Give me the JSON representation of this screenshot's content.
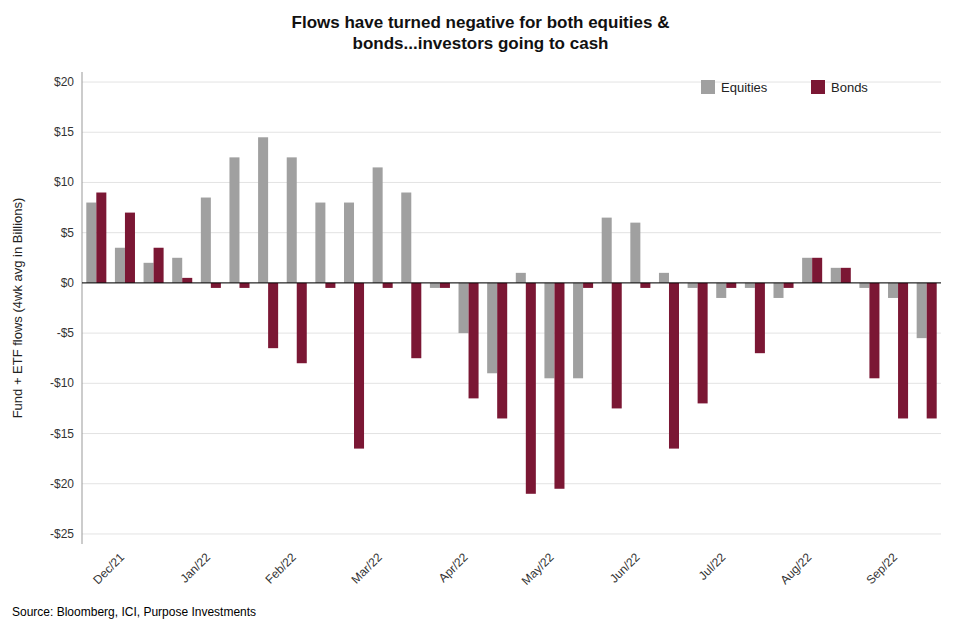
{
  "chart_data": {
    "type": "bar",
    "title": "Flows have turned negative for both equities &\nbonds...investors going to cash",
    "y_label": "Fund + ETF flows (4wk avg in Billions)",
    "annotations": [
      "Source: Bloomberg, ICI, Purpose Investments"
    ],
    "categories": [
      null,
      "Dec/21",
      null,
      null,
      "Jan/22",
      null,
      null,
      "Feb/22",
      null,
      null,
      "Mar/22",
      null,
      null,
      "Apr/22",
      null,
      null,
      "May/22",
      null,
      null,
      "Jun/22",
      null,
      null,
      "Jul/22",
      null,
      null,
      "Aug/22",
      null,
      null,
      "Sep/22",
      null
    ],
    "series": [
      {
        "name": "Equities",
        "color": "#a0a0a0",
        "values": [
          8.0,
          3.5,
          2.0,
          2.5,
          8.5,
          12.5,
          14.5,
          12.5,
          8.0,
          8.0,
          11.5,
          9.0,
          -0.5,
          -5.0,
          -9.0,
          1.0,
          -9.5,
          -9.5,
          6.5,
          6.0,
          1.0,
          -0.5,
          -1.5,
          -0.5,
          -1.5,
          2.5,
          1.5,
          -0.5,
          -1.5,
          -5.5
        ]
      },
      {
        "name": "Bonds",
        "color": "#7b1734",
        "values": [
          9.0,
          7.0,
          3.5,
          0.5,
          -0.5,
          -0.5,
          -6.5,
          -8.0,
          -0.5,
          -16.5,
          -0.5,
          -7.5,
          -0.5,
          -11.5,
          -13.5,
          -21.0,
          -20.5,
          -0.5,
          -12.5,
          -0.5,
          -16.5,
          -12.0,
          -0.5,
          -7.0,
          -0.5,
          2.5,
          1.5,
          -9.5,
          -13.5,
          -13.5
        ]
      }
    ],
    "ylim": [
      -26,
      21
    ],
    "yticks": [
      {
        "value": -25,
        "label": "-$25"
      },
      {
        "value": -20,
        "label": "-$20"
      },
      {
        "value": -15,
        "label": "-$15"
      },
      {
        "value": -10,
        "label": "-$10"
      },
      {
        "value": -5,
        "label": "-$5"
      },
      {
        "value": 0,
        "label": "$0"
      },
      {
        "value": 5,
        "label": "$5"
      },
      {
        "value": 10,
        "label": "$10"
      },
      {
        "value": 15,
        "label": "$15"
      },
      {
        "value": 20,
        "label": "$20"
      }
    ],
    "grid": true,
    "legend": "upper right"
  }
}
